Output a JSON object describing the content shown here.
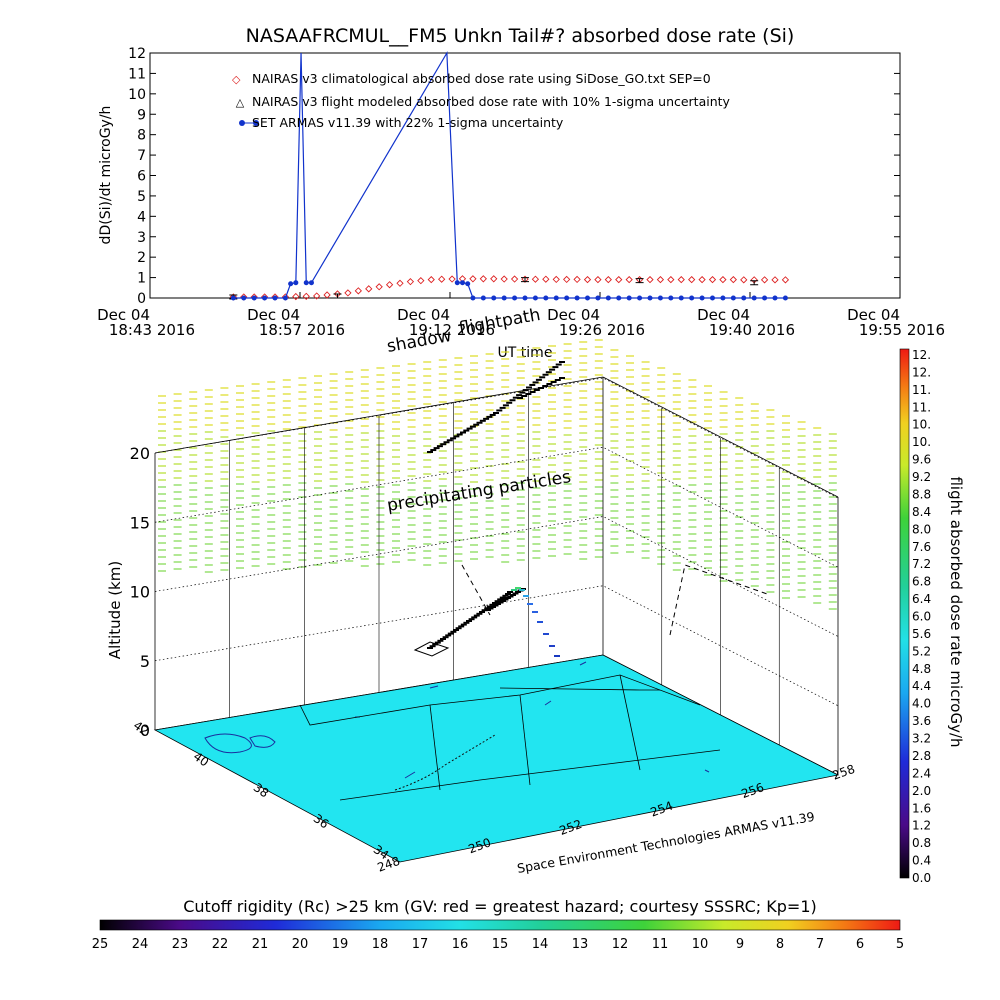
{
  "chart_data": [
    {
      "type": "line",
      "title": "NASAAFRCMUL__FM5 Unkn Tail#? absorbed dose rate (Si)",
      "ylabel": "dD(Si)/dt microGy/h",
      "xlabel": "UT time",
      "ylim": [
        0,
        12
      ],
      "y_ticks": [
        "0",
        "1",
        "2",
        "3",
        "4",
        "5",
        "6",
        "7",
        "8",
        "9",
        "10",
        "11",
        "12"
      ],
      "x_ticks": [
        {
          "date": "Dec 04",
          "time": "18:43 2016"
        },
        {
          "date": "Dec 04",
          "time": "18:57 2016"
        },
        {
          "date": "Dec 04",
          "time": "19:12 2016"
        },
        {
          "date": "Dec 04",
          "time": "19:26 2016"
        },
        {
          "date": "Dec 04",
          "time": "19:40 2016"
        },
        {
          "date": "Dec 04",
          "time": "19:55 2016"
        }
      ],
      "x_minutes_range": [
        0,
        72
      ],
      "legend": [
        "NAIRAS v3 climatological absorbed dose rate using SiDose_GO.txt SEP=0",
        "NAIRAS v3 flight modeled absorbed dose rate with 10% 1-sigma uncertainty",
        "SET ARMAS v11.39 with 22% 1-sigma uncertainty"
      ],
      "series": [
        {
          "name": "NAIRAS v3 climatological absorbed dose rate using SiDose_GO.txt SEP=0",
          "color": "#dd2222",
          "marker": "diamond",
          "x": [
            8,
            9,
            10,
            11,
            12,
            13,
            14,
            15,
            16,
            17,
            18,
            19,
            20,
            21,
            22,
            23,
            24,
            25,
            26,
            27,
            28,
            29,
            30,
            31,
            32,
            33,
            34,
            35,
            36,
            37,
            38,
            39,
            40,
            41,
            42,
            43,
            44,
            45,
            46,
            47,
            48,
            49,
            50,
            51,
            52,
            53,
            54,
            55,
            56,
            57,
            58,
            59,
            60,
            61
          ],
          "values": [
            0.05,
            0.05,
            0.05,
            0.05,
            0.05,
            0.05,
            0.07,
            0.08,
            0.1,
            0.15,
            0.2,
            0.25,
            0.35,
            0.45,
            0.55,
            0.65,
            0.72,
            0.8,
            0.85,
            0.9,
            0.92,
            0.93,
            0.94,
            0.94,
            0.94,
            0.94,
            0.93,
            0.93,
            0.92,
            0.92,
            0.92,
            0.91,
            0.91,
            0.91,
            0.9,
            0.9,
            0.9,
            0.9,
            0.9,
            0.9,
            0.9,
            0.9,
            0.9,
            0.9,
            0.9,
            0.9,
            0.9,
            0.9,
            0.9,
            0.89,
            0.89,
            0.89,
            0.89,
            0.89
          ]
        },
        {
          "name": "NAIRAS v3 flight modeled absorbed dose rate with 10% 1-sigma uncertainty",
          "color": "#000000",
          "marker": "triangle",
          "x": [
            8,
            18,
            36,
            47,
            58
          ],
          "values": [
            0.05,
            0.1,
            0.9,
            0.85,
            0.75
          ]
        },
        {
          "name": "SET ARMAS v11.39 with 22% 1-sigma uncertainty",
          "color": "#1133cc",
          "marker": "dot",
          "x": [
            8,
            9,
            10,
            11,
            12,
            13,
            13.5,
            14,
            14.5,
            15,
            15.5,
            28.5,
            29,
            29.5,
            30,
            30.5,
            31,
            32,
            33,
            34,
            35,
            36,
            37,
            38,
            39,
            40,
            41,
            42,
            43,
            44,
            45,
            46,
            47,
            48,
            49,
            50,
            51,
            52,
            53,
            54,
            55,
            56,
            57,
            58,
            59,
            60,
            61
          ],
          "values": [
            0,
            0,
            0,
            0,
            0,
            0,
            0.7,
            0.75,
            12,
            0.75,
            0.75,
            12,
            6.3,
            0.75,
            0.75,
            0.7,
            0,
            0,
            0,
            0,
            0,
            0,
            0,
            0,
            0,
            0,
            0,
            0,
            0,
            0,
            0,
            0,
            0,
            0,
            0,
            0,
            0,
            0,
            0,
            0,
            0,
            0,
            0,
            0,
            0,
            0,
            0
          ]
        }
      ]
    },
    {
      "type": "scatter",
      "title": "",
      "annotations": [
        "shadow",
        "flightpath",
        "precipitating particles",
        "Space Environment Technologies ARMAS v11.39"
      ],
      "zlabel": "Altitude (km)",
      "z_ticks": [
        "0",
        "5",
        "10",
        "15",
        "20"
      ],
      "lat_ticks": [
        "34",
        "36",
        "38",
        "40",
        "42"
      ],
      "lon_ticks": [
        "248",
        "250",
        "252",
        "254",
        "256",
        "258"
      ],
      "surface_color": "#22ddee",
      "colorbar": {
        "label": "flight absorbed dose rate microGy/h",
        "ticks": [
          "0.0",
          "0.4",
          "0.8",
          "1.2",
          "1.6",
          "2.0",
          "2.4",
          "2.8",
          "3.2",
          "3.6",
          "4.0",
          "4.4",
          "4.8",
          "5.2",
          "5.6",
          "6.0",
          "6.4",
          "6.8",
          "7.2",
          "7.6",
          "8.0",
          "8.4",
          "8.8",
          "9.2",
          "9.6",
          "10.",
          "10.",
          "11.",
          "11.",
          "12.",
          "12."
        ]
      },
      "cutoff_bar": {
        "title": "Cutoff rigidity (Rc) >25 km (GV: red = greatest hazard; courtesy SSSRC; Kp=1)",
        "ticks": [
          "25",
          "24",
          "23",
          "22",
          "21",
          "20",
          "19",
          "18",
          "17",
          "16",
          "15",
          "14",
          "13",
          "12",
          "11",
          "10",
          "9",
          "8",
          "7",
          "6",
          "5"
        ]
      }
    }
  ]
}
